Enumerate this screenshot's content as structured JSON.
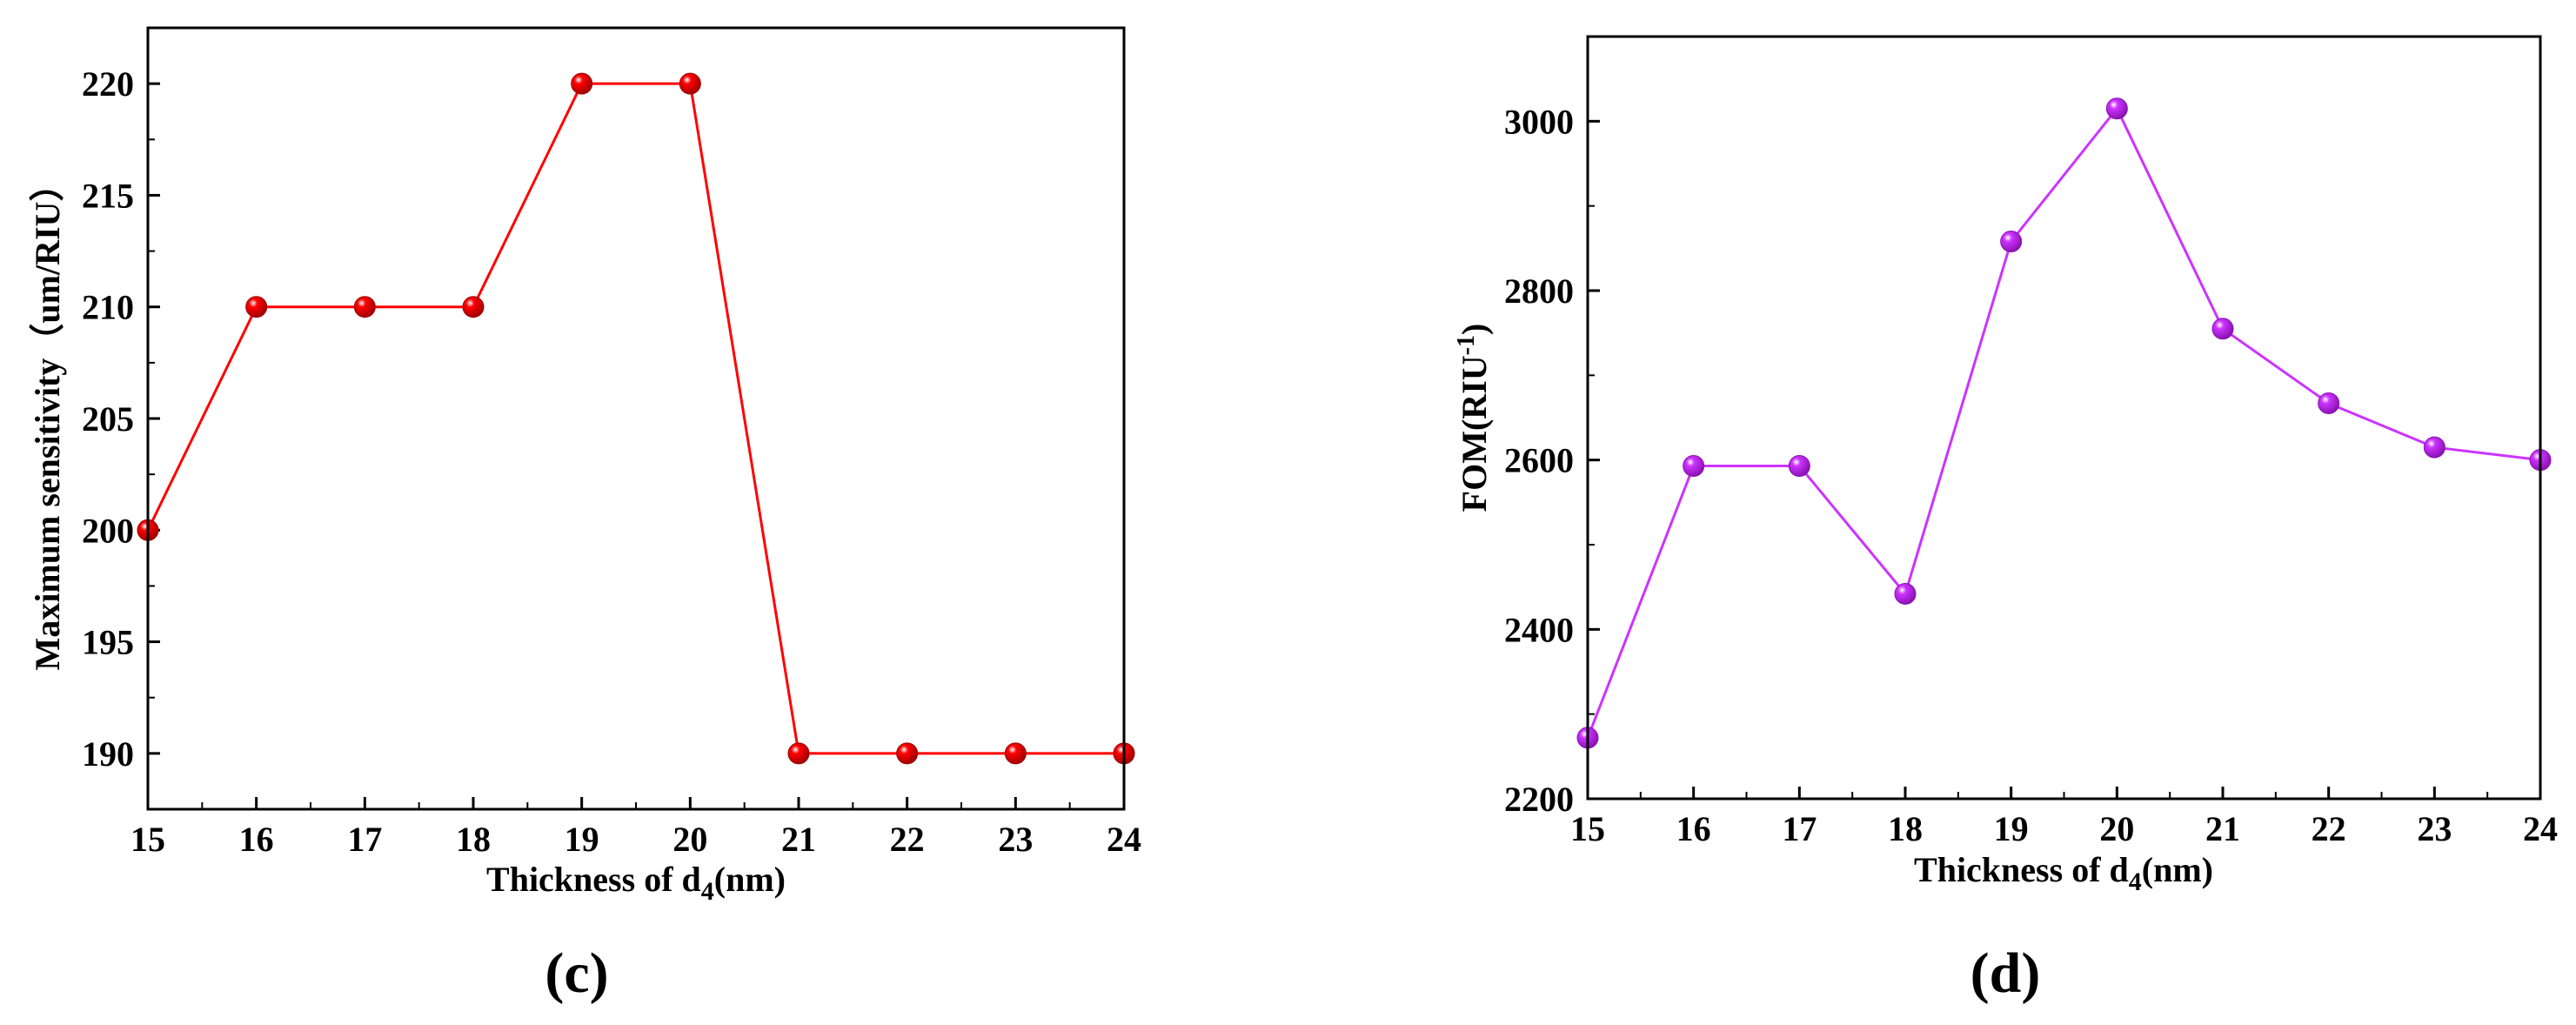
{
  "panels": [
    {
      "panel_label": "(c)",
      "x_title": "Thickness of d",
      "x_title_sub": "4",
      "x_title_unit": "(nm)",
      "y_title": "Maximum sensitivity（um/RIU）",
      "y_title_sup": "",
      "y_title_end": "",
      "colors": {
        "line": "#ff0000",
        "marker": "#ff0000",
        "marker_dark": "#a00000"
      }
    },
    {
      "panel_label": "(d)",
      "x_title": "Thickness of d",
      "x_title_sub": "4",
      "x_title_unit": "(nm)",
      "y_title": "FOM(RIU",
      "y_title_sup": "-1",
      "y_title_end": ")",
      "colors": {
        "line": "#cc33ff",
        "marker": "#cc33ff",
        "marker_dark": "#8a12b0"
      }
    }
  ],
  "chart_data": [
    {
      "type": "line",
      "x": [
        15,
        16,
        17,
        18,
        19,
        20,
        21,
        22,
        23,
        24
      ],
      "series": [
        {
          "values": [
            200,
            210,
            210,
            210,
            220,
            220,
            190,
            190,
            190,
            190
          ]
        }
      ],
      "xlabel": "Thickness of d4(nm)",
      "ylabel": "Maximum sensitivity（um/RIU）",
      "xlim": [
        15,
        24
      ],
      "ylim": [
        187.5,
        222.5
      ],
      "xticks": [
        15,
        16,
        17,
        18,
        19,
        20,
        21,
        22,
        23,
        24
      ],
      "yticks": [
        190,
        195,
        200,
        205,
        210,
        215,
        220
      ],
      "grid": false,
      "legend": false
    },
    {
      "type": "line",
      "x": [
        15,
        16,
        17,
        18,
        19,
        20,
        21,
        22,
        23,
        24
      ],
      "series": [
        {
          "values": [
            2272,
            2593,
            2593,
            2442,
            2858,
            3015,
            2755,
            2667,
            2615,
            2600
          ]
        }
      ],
      "xlabel": "Thickness of d4(nm)",
      "ylabel": "FOM(RIU-1)",
      "xlim": [
        15,
        24
      ],
      "ylim": [
        2200,
        3100
      ],
      "xticks": [
        15,
        16,
        17,
        18,
        19,
        20,
        21,
        22,
        23,
        24
      ],
      "yticks": [
        2200,
        2400,
        2600,
        2800,
        3000
      ],
      "grid": false,
      "legend": false
    }
  ]
}
